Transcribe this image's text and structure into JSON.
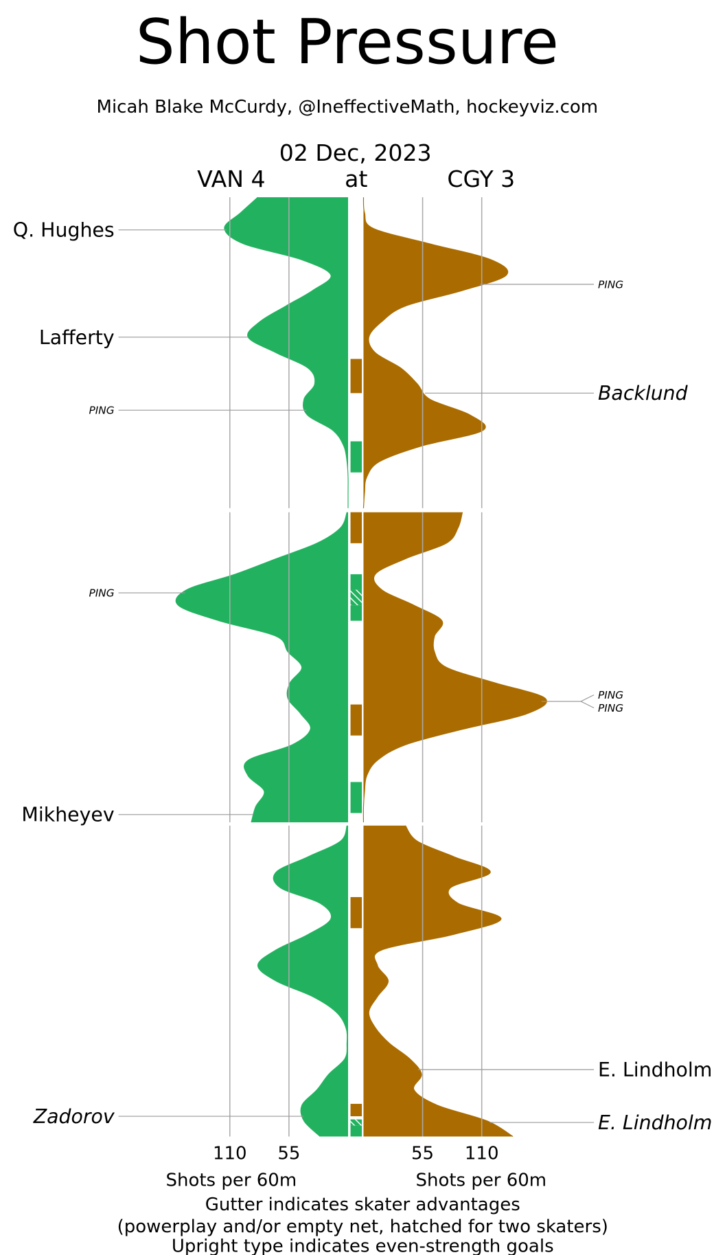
{
  "chart_data": {
    "type": "shot-pressure",
    "title": "Shot Pressure",
    "subtitle": "Micah Blake McCurdy, @IneffectiveMath, hockeyviz.com",
    "date": "02 Dec, 2023",
    "separator": "at",
    "x": [
      0,
      1,
      2,
      3,
      4,
      5,
      6,
      7,
      8,
      9,
      10,
      11,
      12,
      13,
      14,
      15,
      16,
      17,
      18,
      19,
      20
    ],
    "xlim": [
      0,
      200
    ],
    "xticks": [
      55,
      110
    ],
    "xlabel": "Shots per 60m",
    "teams": [
      {
        "name": "VAN 4",
        "color": "#22b25f",
        "side": "left",
        "periods": [
          [
            84,
            100,
            115,
            97,
            44,
            16,
            33,
            58,
            82,
            93,
            67,
            37,
            31,
            41,
            38,
            14,
            4,
            1,
            0,
            0,
            0
          ],
          [
            1,
            7,
            29,
            67,
            105,
            150,
            158,
            120,
            67,
            56,
            43,
            54,
            56,
            44,
            35,
            52,
            93,
            93,
            78,
            86,
            90
          ],
          [
            1,
            7,
            37,
            67,
            63,
            26,
            16,
            37,
            67,
            84,
            67,
            33,
            11,
            2,
            1,
            3,
            18,
            29,
            43,
            41,
            26
          ]
        ]
      },
      {
        "name": "CGY 3",
        "color": "#aa6c00",
        "side": "right",
        "periods": [
          [
            0,
            1,
            9,
            62,
            118,
            133,
            92,
            39,
            17,
            5,
            11,
            35,
            50,
            62,
            99,
            111,
            54,
            15,
            3,
            1,
            0
          ],
          [
            92,
            88,
            77,
            39,
            11,
            17,
            47,
            73,
            66,
            66,
            77,
            122,
            169,
            152,
            92,
            39,
            13,
            3,
            1,
            0,
            0
          ],
          [
            39,
            50,
            84,
            118,
            81,
            88,
            128,
            84,
            17,
            13,
            23,
            13,
            5,
            11,
            24,
            43,
            54,
            47,
            69,
            115,
            139
          ]
        ]
      }
    ],
    "goals": [
      {
        "team": 0,
        "period": 0,
        "minute": 2.1,
        "label": "Q. Hughes",
        "italic": false,
        "small": false
      },
      {
        "team": 0,
        "period": 0,
        "minute": 9.0,
        "label": "Lafferty",
        "italic": false,
        "small": false
      },
      {
        "team": 0,
        "period": 0,
        "minute": 13.7,
        "label": "PING",
        "italic": true,
        "small": true
      },
      {
        "team": 0,
        "period": 1,
        "minute": 5.2,
        "label": "PING",
        "italic": true,
        "small": true
      },
      {
        "team": 0,
        "period": 1,
        "minute": 19.5,
        "label": "Mikheyev",
        "italic": false,
        "small": false
      },
      {
        "team": 0,
        "period": 2,
        "minute": 18.7,
        "label": "Zadorov",
        "italic": true,
        "small": false
      },
      {
        "team": 1,
        "period": 0,
        "minute": 5.6,
        "label": "PING",
        "italic": true,
        "small": true
      },
      {
        "team": 1,
        "period": 0,
        "minute": 12.6,
        "label": "Backlund",
        "italic": true,
        "small": false
      },
      {
        "team": 1,
        "period": 1,
        "minute": 12.2,
        "label": "PING",
        "italic": true,
        "small": true
      },
      {
        "team": 1,
        "period": 1,
        "minute": 12.2,
        "label": "PING",
        "italic": true,
        "small": true
      },
      {
        "team": 1,
        "period": 2,
        "minute": 15.7,
        "label": "E. Lindholm",
        "italic": false,
        "small": false
      },
      {
        "team": 1,
        "period": 2,
        "minute": 19.1,
        "label": "E. Lindholm",
        "italic": true,
        "small": false
      }
    ],
    "gutter": [
      {
        "team": 1,
        "period": 0,
        "start": 10.4,
        "end": 12.6,
        "hatched": false
      },
      {
        "team": 0,
        "period": 0,
        "start": 15.7,
        "end": 17.7,
        "hatched": false
      },
      {
        "team": 1,
        "period": 1,
        "start": 0,
        "end": 2,
        "hatched": false
      },
      {
        "team": 0,
        "period": 1,
        "start": 4,
        "end": 5,
        "hatched": false
      },
      {
        "team": 0,
        "period": 1,
        "start": 5,
        "end": 6,
        "hatched": true
      },
      {
        "team": 0,
        "period": 1,
        "start": 6,
        "end": 7,
        "hatched": false
      },
      {
        "team": 1,
        "period": 1,
        "start": 12.4,
        "end": 14.4,
        "hatched": false
      },
      {
        "team": 0,
        "period": 1,
        "start": 17.4,
        "end": 19.4,
        "hatched": false
      },
      {
        "team": 1,
        "period": 2,
        "start": 4.6,
        "end": 6.6,
        "hatched": false
      },
      {
        "team": 1,
        "period": 2,
        "start": 17.9,
        "end": 18.7,
        "hatched": false
      },
      {
        "team": 0,
        "period": 2,
        "start": 18.9,
        "end": 19.3,
        "hatched": true
      },
      {
        "team": 0,
        "period": 2,
        "start": 19.3,
        "end": 20,
        "hatched": false
      }
    ],
    "footnote": [
      "Gutter indicates skater advantages",
      "(powerplay and/or empty net, hatched for two skaters)",
      "Upright type indicates even-strength goals"
    ]
  }
}
